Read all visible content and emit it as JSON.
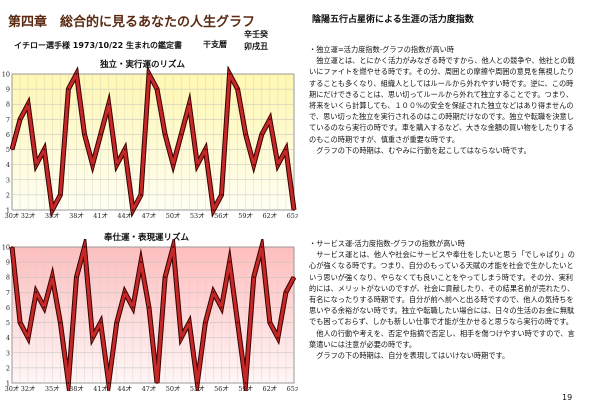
{
  "chapter_title": "第四章　総合的に見るあなたの人生グラフ",
  "right_title": "陰陽五行占星術による生涯の活力度指数",
  "subject_line": "イチロー選手様  1973/10/22 生まれの鑑定書",
  "kanshi_label": "干支暦",
  "kanshi": [
    "辛壬癸",
    "卯戌丑"
  ],
  "charts": [
    {
      "title": "独立・実行運のリズム",
      "colors": {
        "bg_top": "#fff7b0",
        "bg_bottom": "#fffef2",
        "line": "#c62828"
      }
    },
    {
      "title": "奉仕運・表現運リズム",
      "colors": {
        "bg_top": "#ffbdbd",
        "bg_bottom": "#fff6f6",
        "line": "#c62828"
      }
    }
  ],
  "chart_data": [
    {
      "type": "line",
      "title": "独立・実行運のリズム",
      "categories": [
        "30才",
        "32才",
        "35才",
        "38才",
        "41才",
        "44才",
        "47才",
        "50才",
        "53才",
        "56才",
        "59才",
        "62才",
        "65才"
      ],
      "x": [
        30,
        31,
        32,
        33,
        34,
        35,
        36,
        37,
        38,
        39,
        40,
        41,
        42,
        43,
        44,
        45,
        46,
        47,
        48,
        49,
        50,
        51,
        52,
        53,
        54,
        55,
        56,
        57,
        58,
        59,
        60,
        61,
        62,
        63,
        64,
        65
      ],
      "values": [
        5,
        7,
        8,
        4,
        5,
        1,
        2,
        9,
        10,
        6,
        4,
        6,
        8,
        4,
        5,
        1,
        2,
        10,
        9,
        6,
        4,
        6,
        8,
        4,
        5,
        1,
        2,
        10,
        9,
        6,
        4,
        6,
        7,
        4,
        5,
        1
      ],
      "ylim": [
        1,
        10
      ],
      "yticks": [
        1,
        2,
        3,
        4,
        5,
        6,
        7,
        8,
        9,
        10
      ]
    },
    {
      "type": "line",
      "title": "奉仕運・表現運リズム",
      "categories": [
        "30才",
        "32才",
        "35才",
        "38才",
        "41才",
        "44才",
        "47才",
        "50才",
        "53才",
        "56才",
        "59才",
        "62才",
        "65才"
      ],
      "x": [
        30,
        31,
        32,
        33,
        34,
        35,
        36,
        37,
        38,
        39,
        40,
        41,
        42,
        43,
        44,
        45,
        46,
        47,
        48,
        49,
        50,
        51,
        52,
        53,
        54,
        55,
        56,
        57,
        58,
        59,
        60,
        61,
        62,
        63,
        64,
        65
      ],
      "values": [
        10,
        5,
        4,
        7,
        6,
        8,
        5,
        1,
        8,
        10,
        4,
        5,
        1,
        5,
        7,
        6,
        9,
        6,
        1,
        8,
        10,
        4,
        5,
        1,
        5,
        7,
        6,
        9,
        5,
        1,
        8,
        10,
        5,
        4,
        7,
        8
      ],
      "ylim": [
        1,
        10
      ],
      "yticks": [
        1,
        2,
        3,
        4,
        5,
        6,
        7,
        8,
        9,
        10
      ]
    }
  ],
  "sections": [
    {
      "paragraphs": [
        "・独立運=活力度指数-グラフの指数が高い時",
        "　独立運とは、とにかく活力がみなぎる時ですから、他人との競争や、他社との戦いにファイトを燃やせる時です。その分、周囲との摩擦や周囲の意見を無視したりすることも多くなり、組織人としてはルールから外れやすい時です。逆に、この時期にだけできることは、思い切ってルールから外れて独立することです。つまり、将来をいくら計算しても、１００%の安全を保証された独立などはあり得ませんので、思い切った独立を実行されるのはこの時期だけなのです。独立や転職を決意しているのなら実行の時です。車を購入するなど、大きな金額の買い物をしたりするのもこの時期ですが、慎重さが重要な時です。",
        "　グラフの下の時期は、むやみに行動を起こしてはならない時です。"
      ]
    },
    {
      "paragraphs": [
        "・サービス運-活力度指数-グラフの指数が高い時",
        "　サービス運とは、他人や社会にサービスや奉仕をしたいと思う「でしゃばり」の心が強くなる時です。つまり、自分のもっている天賦の才能を社会で生かしたいという思いが強くなり、やらなくても良いことをやってしまう時です。その分、実利的には、メリットがないのですが、社会に貢献したり、その結果名前が売れたり、有名になったりする時期です。自分が前へ前へと出る時ですので、他人の気持ちを思いやる余裕がない時です。独立や転職したい場合には、日々の生活のお金に無駄でも困っておらず、しかも新しい仕事で才能が生かせると思うなら実行の時です。",
        "　他人の行動や考えを、否定や指摘で否定し、相手を傷つけやすい時ですので、言葉遣いには注意が必要の時です。",
        "　グラフの下の時期は、自分を表現してはいけない時期です。"
      ]
    }
  ],
  "page_number": "19"
}
